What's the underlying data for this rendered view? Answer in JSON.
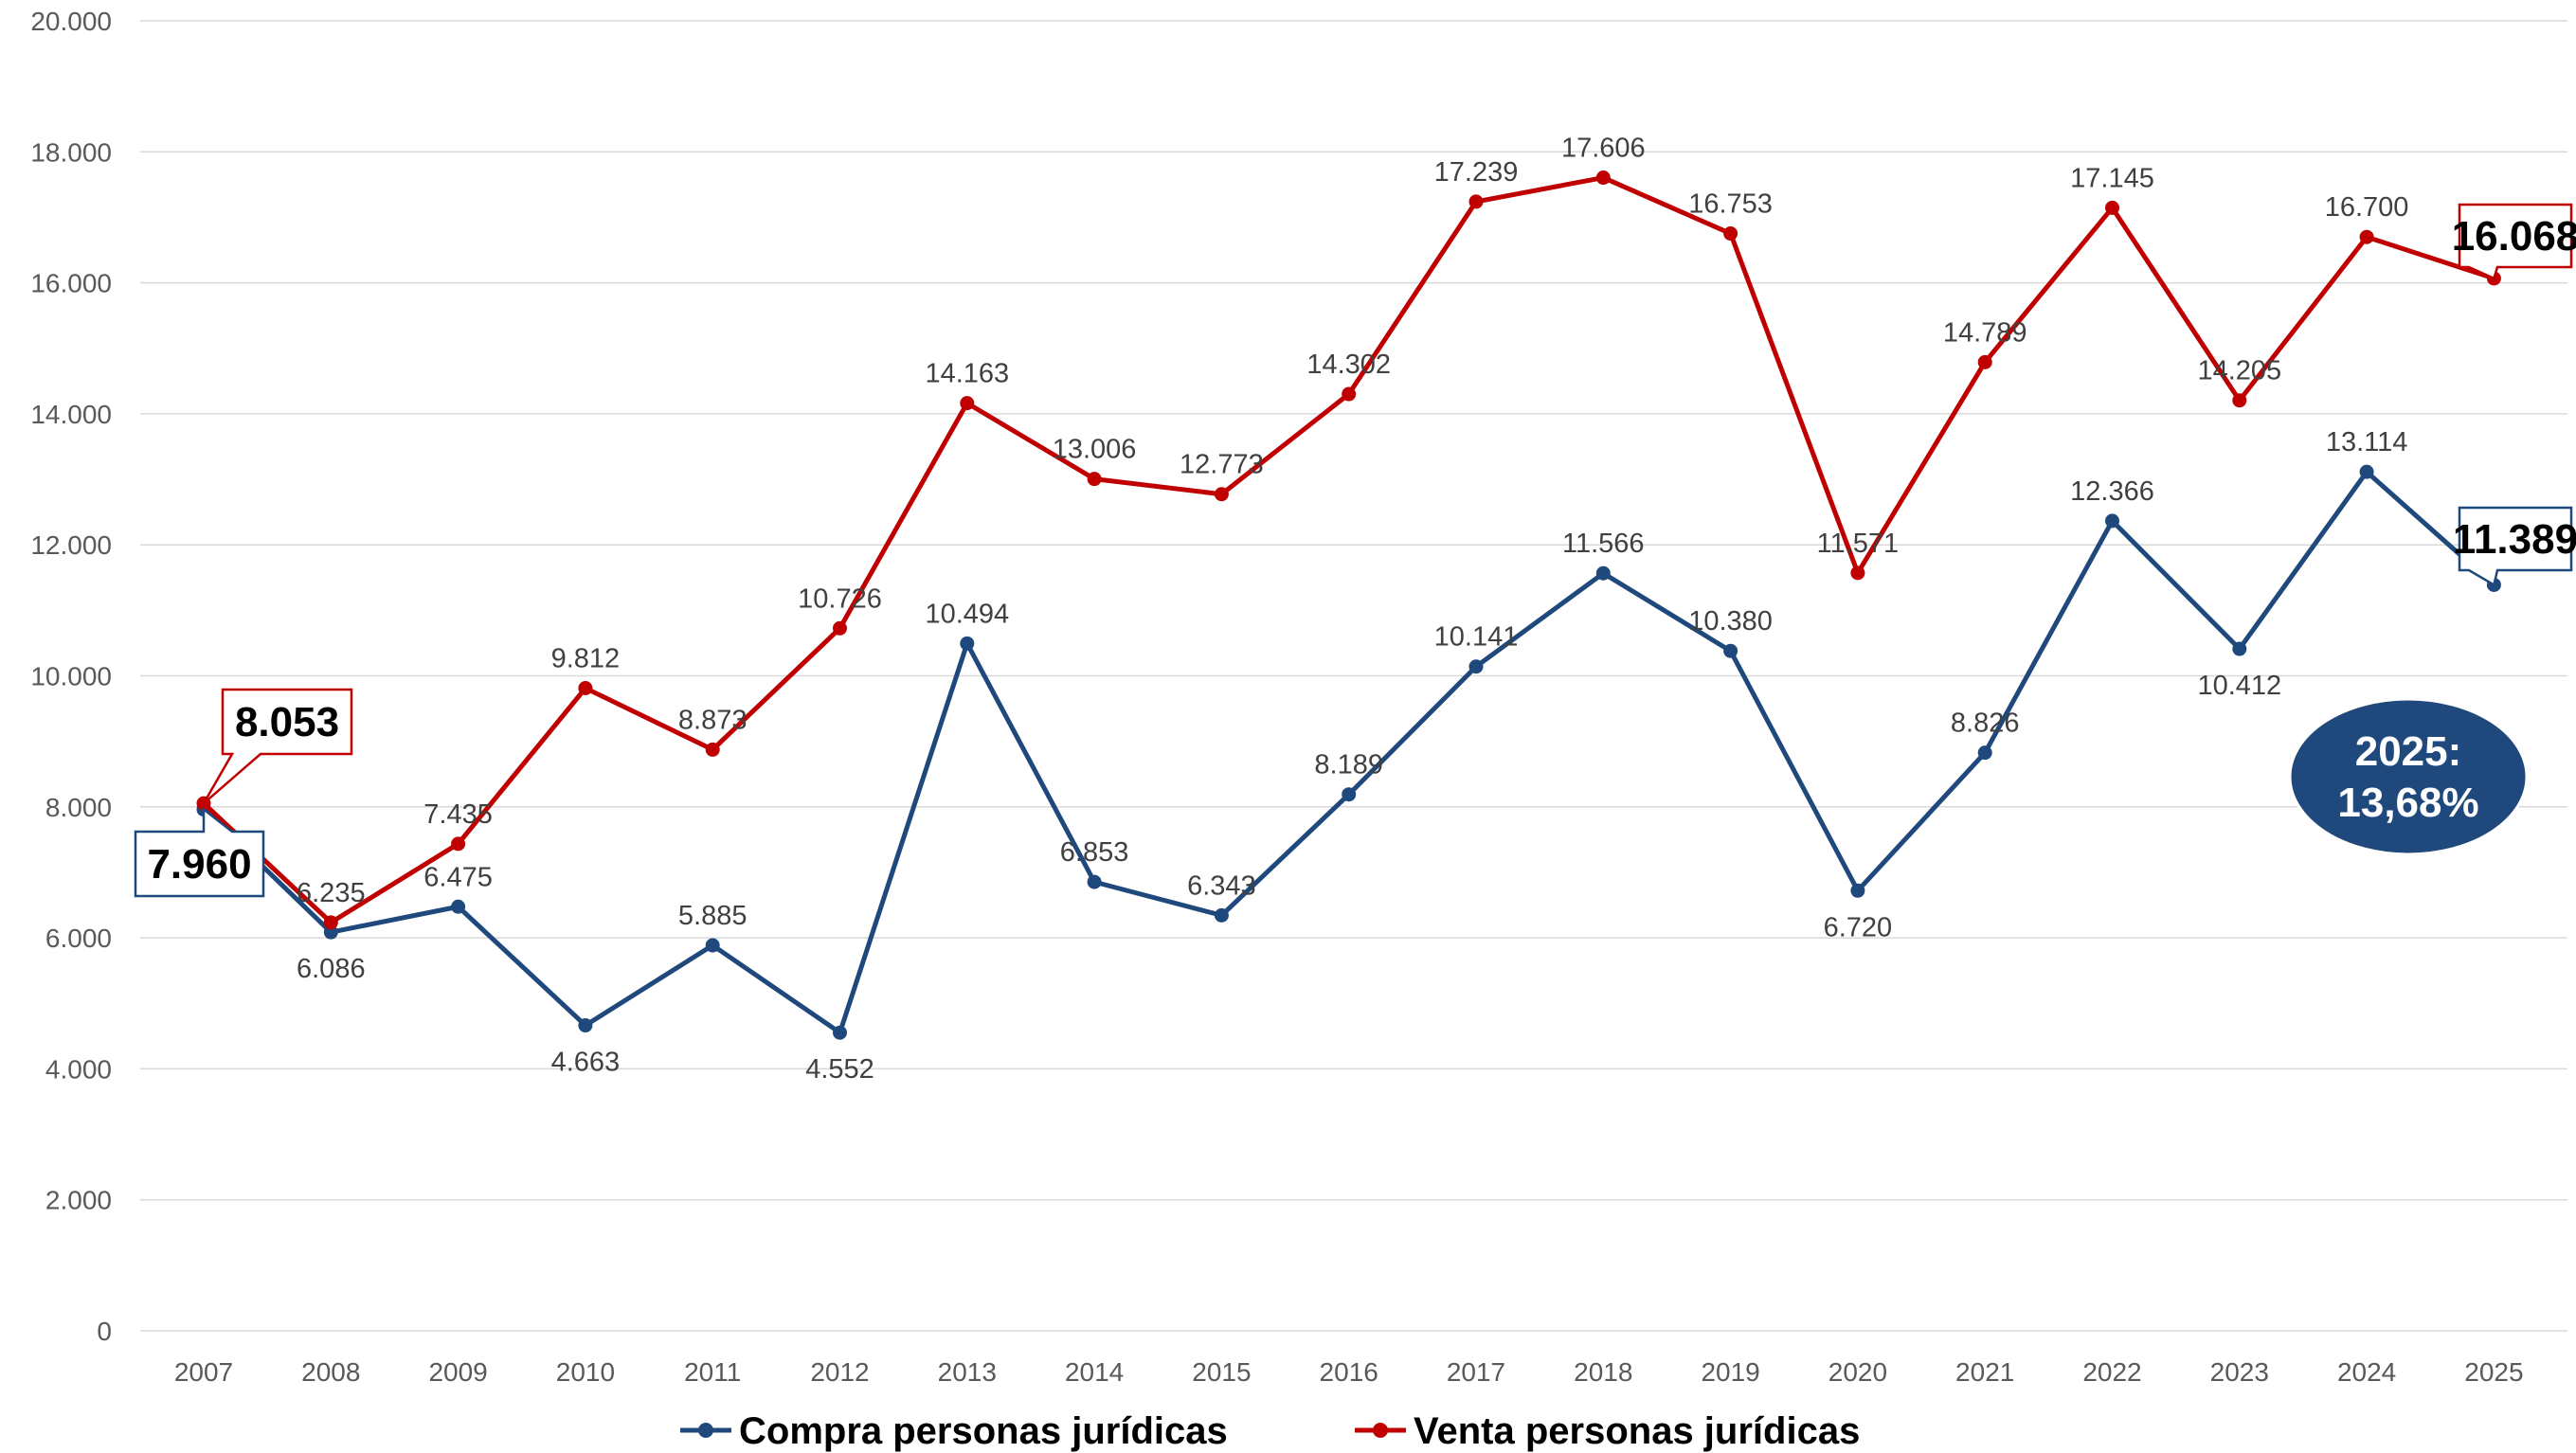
{
  "chart_data": {
    "type": "line",
    "categories": [
      "2007",
      "2008",
      "2009",
      "2010",
      "2011",
      "2012",
      "2013",
      "2014",
      "2015",
      "2016",
      "2017",
      "2018",
      "2019",
      "2020",
      "2021",
      "2022",
      "2023",
      "2024",
      "2025"
    ],
    "ylim": [
      0,
      20000
    ],
    "yticks": [
      "0",
      "2.000",
      "4.000",
      "6.000",
      "8.000",
      "10.000",
      "12.000",
      "14.000",
      "16.000",
      "18.000",
      "20.000"
    ],
    "grid": true,
    "legend_position": "bottom",
    "series": [
      {
        "name": "Compra personas jurídicas",
        "color": "#1F497D",
        "values": [
          7960,
          6086,
          6475,
          4663,
          5885,
          4552,
          10494,
          6853,
          6343,
          8189,
          10141,
          11566,
          10380,
          6720,
          8826,
          12366,
          10412,
          13114,
          11389
        ],
        "labels": [
          "",
          "6.086",
          "6.475",
          "4.663",
          "5.885",
          "4.552",
          "10.494",
          "6.853",
          "6.343",
          "8.189",
          "10.141",
          "11.566",
          "10.380",
          "6.720",
          "8.826",
          "12.366",
          "10.412",
          "13.114",
          ""
        ]
      },
      {
        "name": "Venta personas jurídicas",
        "color": "#C00000",
        "values": [
          8053,
          6235,
          7435,
          9812,
          8873,
          10726,
          14163,
          13006,
          12773,
          14302,
          17239,
          17606,
          16753,
          11571,
          14789,
          17145,
          14205,
          16700,
          16068
        ],
        "labels": [
          "",
          "6.235",
          "7.435",
          "9.812",
          "8.873",
          "10.726",
          "14.163",
          "13.006",
          "12.773",
          "14.302",
          "17.239",
          "17.606",
          "16.753",
          "11.571",
          "14.789",
          "17.145",
          "14.205",
          "16.700",
          ""
        ]
      }
    ],
    "callouts": {
      "compra_first": "7.960",
      "venta_first": "8.053",
      "compra_last": "11.389",
      "venta_last": "16.068"
    },
    "badge": {
      "line1": "2025:",
      "line2": "13,68%",
      "color": "#1F497D"
    }
  }
}
